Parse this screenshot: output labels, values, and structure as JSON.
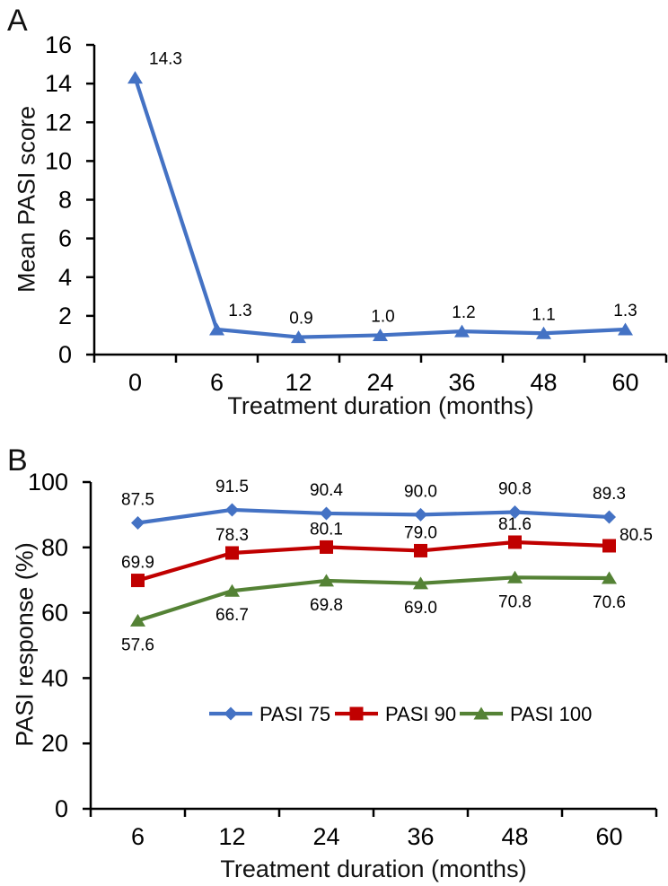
{
  "page": {
    "background": "#ffffff"
  },
  "chart_data": [
    {
      "type": "line",
      "panel_label": "A",
      "title": "",
      "xlabel": "Treatment duration (months)",
      "ylabel": "Mean PASI score",
      "categories": [
        "0",
        "6",
        "12",
        "24",
        "36",
        "48",
        "60"
      ],
      "ylim": [
        0,
        16
      ],
      "ytick_step": 2,
      "grid": false,
      "legend": false,
      "series": [
        {
          "name": "",
          "marker": "triangle",
          "color": "#4472C4",
          "values": [
            14.3,
            1.3,
            0.9,
            1.0,
            1.2,
            1.1,
            1.3
          ],
          "data_labels": [
            "14.3",
            "1.3",
            "0.9",
            "1.0",
            "1.2",
            "1.1",
            "1.3"
          ],
          "label_position": "above"
        }
      ]
    },
    {
      "type": "line",
      "panel_label": "B",
      "title": "",
      "xlabel": "Treatment duration (months)",
      "ylabel": "PASI response (%)",
      "categories": [
        "6",
        "12",
        "24",
        "36",
        "48",
        "60"
      ],
      "ylim": [
        0,
        100
      ],
      "ytick_step": 20,
      "grid": false,
      "legend": {
        "position": "inside-bottom-center"
      },
      "series": [
        {
          "name": "PASI 75",
          "marker": "diamond",
          "color": "#4472C4",
          "values": [
            87.5,
            91.5,
            90.4,
            90.0,
            90.8,
            89.3
          ],
          "data_labels": [
            "87.5",
            "91.5",
            "90.4",
            "90.0",
            "90.8",
            "89.3"
          ],
          "label_position": "above"
        },
        {
          "name": "PASI 90",
          "marker": "square",
          "color": "#C00000",
          "values": [
            69.9,
            78.3,
            80.1,
            79.0,
            81.6,
            80.5
          ],
          "data_labels": [
            "69.9",
            "78.3",
            "80.1",
            "79.0",
            "81.6",
            "80.5"
          ],
          "label_position": "above"
        },
        {
          "name": "PASI 100",
          "marker": "triangle",
          "color": "#548235",
          "values": [
            57.6,
            66.7,
            69.8,
            69.0,
            70.8,
            70.6
          ],
          "data_labels": [
            "57.6",
            "66.7",
            "69.8",
            "69.0",
            "70.8",
            "70.6"
          ],
          "label_position": "below"
        }
      ]
    }
  ]
}
